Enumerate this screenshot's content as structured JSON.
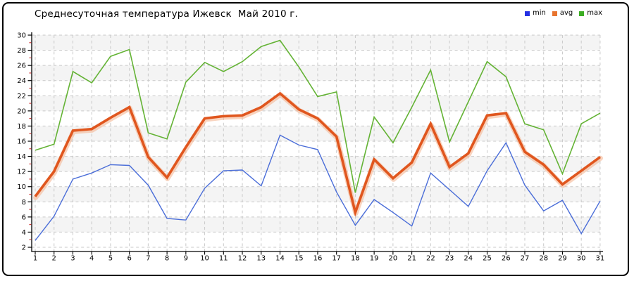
{
  "title": "Среднесуточная температура Ижевск  Май 2010 г.",
  "legend": [
    {
      "label": "min",
      "color": "#2531e3"
    },
    {
      "label": "avg",
      "color": "#e8742e"
    },
    {
      "label": "max",
      "color": "#3cae23"
    }
  ],
  "chart_data": {
    "type": "line",
    "title": "Среднесуточная температура Ижевск  Май 2010 г.",
    "x": [
      1,
      2,
      3,
      4,
      5,
      6,
      7,
      8,
      9,
      10,
      11,
      12,
      13,
      14,
      15,
      16,
      17,
      18,
      19,
      20,
      21,
      22,
      23,
      24,
      25,
      26,
      27,
      28,
      29,
      30,
      31
    ],
    "xlabel": "",
    "ylabel": "",
    "ylim": [
      2,
      30
    ],
    "y_tick_step": 2,
    "y_minor_tick_step": 1,
    "grid": true,
    "legend_position": "top-right",
    "series": [
      {
        "name": "min",
        "color": "#4a6dd8",
        "width": 1.4,
        "values": [
          2.9,
          6.1,
          11.0,
          11.8,
          12.9,
          12.8,
          10.2,
          5.8,
          5.6,
          9.8,
          12.1,
          12.2,
          10.1,
          16.8,
          15.5,
          14.9,
          9.3,
          4.9,
          8.3,
          6.6,
          4.8,
          11.8,
          9.6,
          7.4,
          12.1,
          15.8,
          10.2,
          6.8,
          8.2,
          3.8,
          8.1
        ]
      },
      {
        "name": "avg",
        "color": "#e0561e",
        "width": 3.6,
        "halo_color": "#f4b08a",
        "values": [
          8.7,
          12.0,
          17.4,
          17.6,
          19.1,
          20.5,
          13.9,
          11.2,
          15.2,
          19.0,
          19.3,
          19.4,
          20.5,
          22.3,
          20.2,
          19.0,
          16.6,
          6.6,
          13.6,
          11.1,
          13.2,
          18.3,
          12.6,
          14.4,
          19.4,
          19.7,
          14.6,
          12.9,
          10.3,
          12.1,
          13.9
        ]
      },
      {
        "name": "max",
        "color": "#64b335",
        "width": 1.6,
        "values": [
          14.8,
          15.6,
          25.2,
          23.7,
          27.2,
          28.1,
          17.1,
          16.3,
          23.8,
          26.4,
          25.2,
          26.5,
          28.5,
          29.3,
          25.8,
          21.9,
          22.5,
          9.2,
          19.2,
          15.8,
          20.5,
          25.4,
          15.9,
          21.2,
          26.5,
          24.5,
          18.3,
          17.5,
          11.7,
          18.3,
          19.7
        ]
      }
    ]
  },
  "style": {
    "band_color": "#f4f4f4",
    "grid_color": "#c9c9c9",
    "axis_color": "#000000",
    "minor_tick_color": "#cc2222",
    "frame_border_color": "#000000",
    "text_color": "#000000"
  }
}
